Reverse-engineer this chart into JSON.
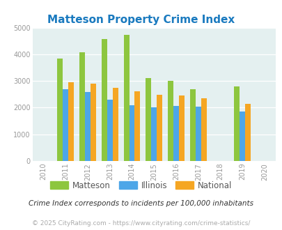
{
  "title": "Matteson Property Crime Index",
  "years": [
    2011,
    2012,
    2013,
    2014,
    2015,
    2016,
    2017,
    2019
  ],
  "matteson": [
    3850,
    4070,
    4570,
    4720,
    3110,
    3010,
    2700,
    2800
  ],
  "illinois": [
    2680,
    2580,
    2300,
    2100,
    2020,
    2070,
    2040,
    1860
  ],
  "national": [
    2940,
    2890,
    2750,
    2600,
    2490,
    2460,
    2360,
    2130
  ],
  "color_matteson": "#8dc63f",
  "color_illinois": "#4da6e8",
  "color_national": "#f5a623",
  "bg_color": "#e4f0f0",
  "xlim": [
    2009.5,
    2020.5
  ],
  "ylim": [
    0,
    5000
  ],
  "yticks": [
    0,
    1000,
    2000,
    3000,
    4000,
    5000
  ],
  "xticks": [
    2010,
    2011,
    2012,
    2013,
    2014,
    2015,
    2016,
    2017,
    2018,
    2019,
    2020
  ],
  "subtitle": "Crime Index corresponds to incidents per 100,000 inhabitants",
  "footer": "© 2025 CityRating.com - https://www.cityrating.com/crime-statistics/",
  "bar_width": 0.25,
  "title_color": "#1a7abf",
  "tick_color": "#999999",
  "subtitle_color": "#333333",
  "footer_color": "#aaaaaa"
}
